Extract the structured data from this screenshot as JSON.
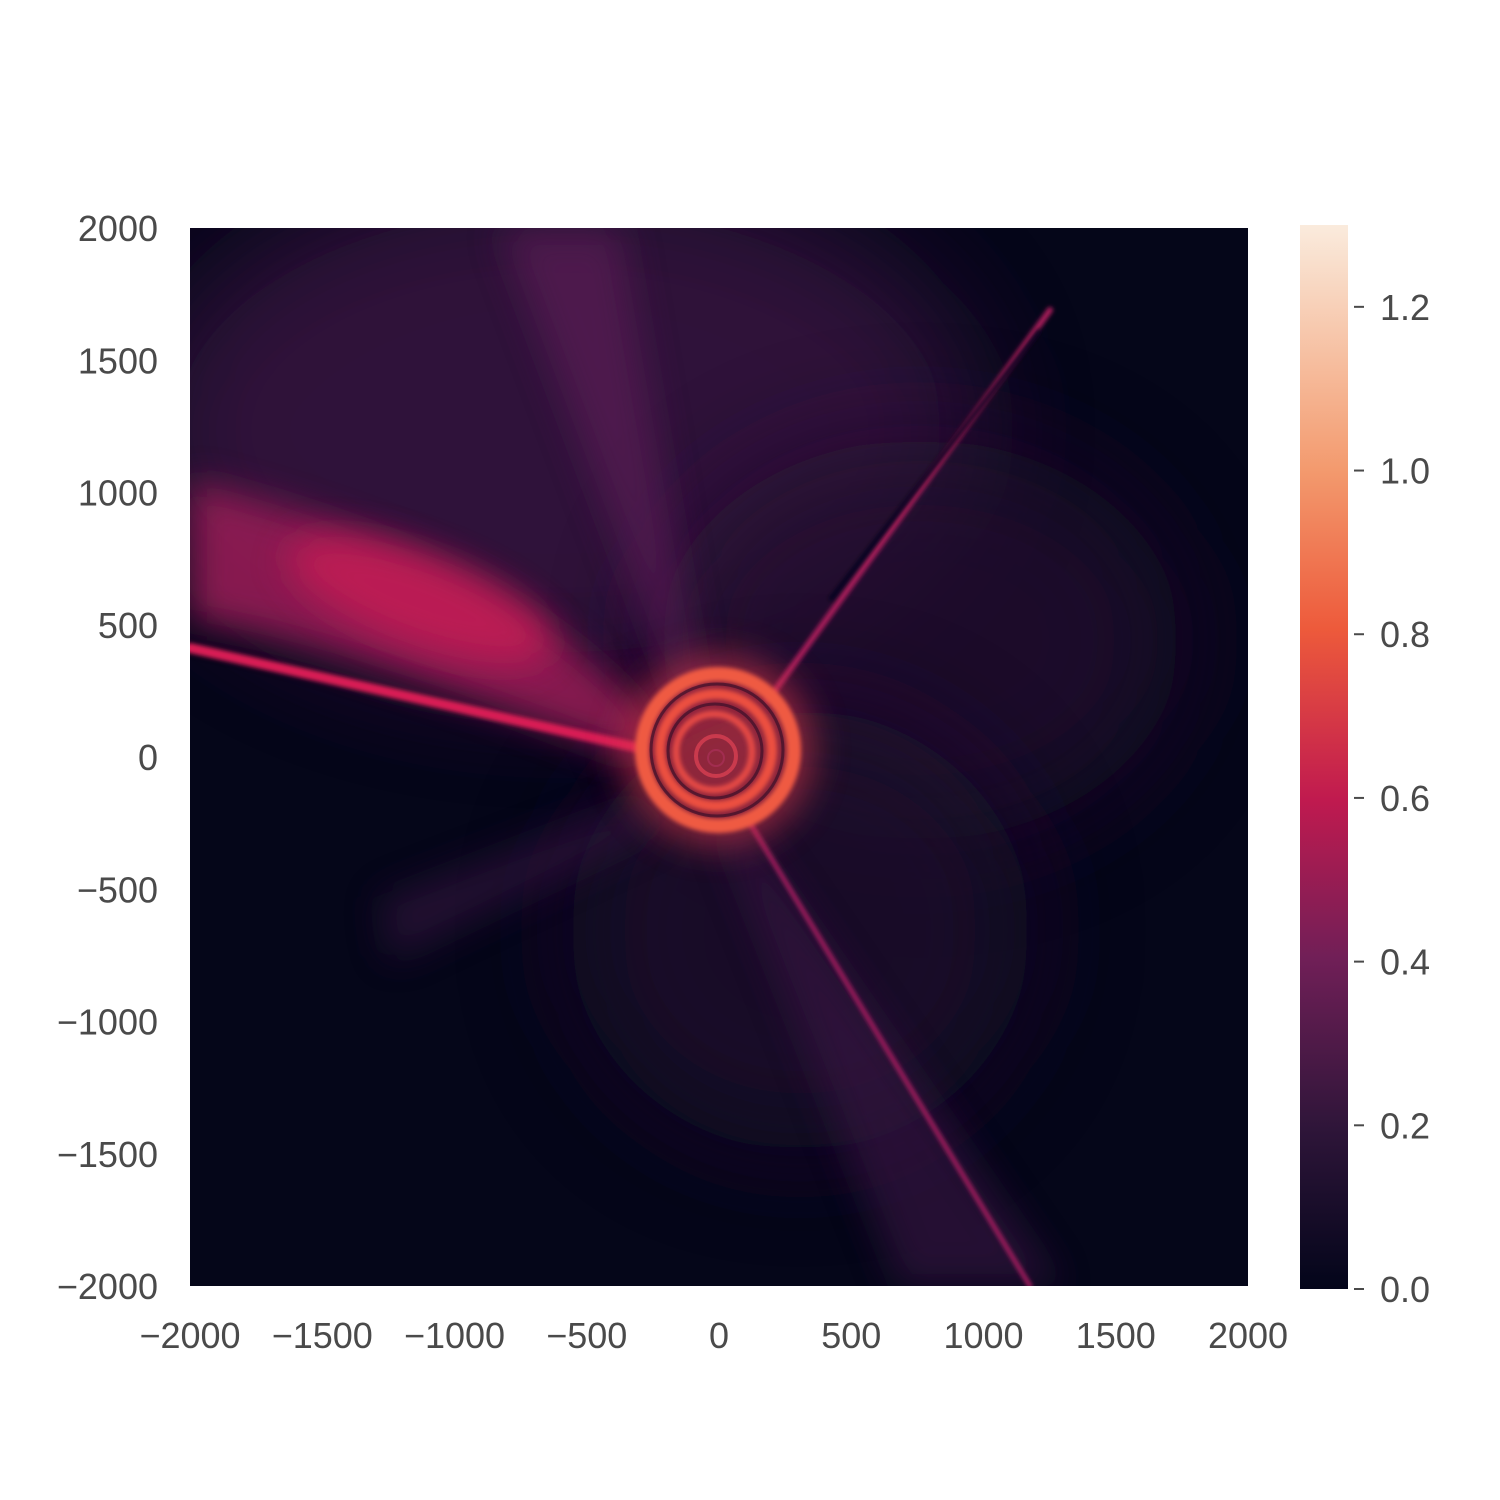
{
  "chart_data": {
    "type": "heatmap",
    "title": "",
    "xlabel": "",
    "ylabel": "",
    "xlim": [
      -2000,
      2000
    ],
    "ylim": [
      -2000,
      2000
    ],
    "x_ticks": [
      -2000,
      -1500,
      -1000,
      -500,
      0,
      500,
      1000,
      1500,
      2000
    ],
    "y_ticks": [
      2000,
      1500,
      1000,
      500,
      0,
      -500,
      -1000,
      -1500,
      -2000
    ],
    "x_tick_labels": [
      "−2000",
      "−1500",
      "−1000",
      "−500",
      "0",
      "500",
      "1000",
      "1500",
      "2000"
    ],
    "y_tick_labels": [
      "2000",
      "1500",
      "1000",
      "500",
      "0",
      "−500",
      "−1000",
      "−1500",
      "−2000"
    ],
    "colorbar": {
      "range": [
        0.0,
        1.3
      ],
      "ticks": [
        0.0,
        0.2,
        0.4,
        0.6,
        0.8,
        1.0,
        1.2
      ],
      "tick_labels": [
        "0.0",
        "0.2",
        "0.4",
        "0.6",
        "0.8",
        "1.0",
        "1.2"
      ],
      "colors": [
        "#03051a",
        "#2e1539",
        "#701f57",
        "#c01a4f",
        "#ed5a3b",
        "#f39a6e",
        "#faebdd"
      ]
    },
    "grid": false,
    "features": {
      "spiral_center": [
        0,
        0
      ],
      "spiral_outer_radius": 320,
      "jets": [
        {
          "from": [
            -300,
            50
          ],
          "to": [
            -2000,
            420
          ],
          "peak_value": 0.65
        },
        {
          "from": [
            180,
            220
          ],
          "to": [
            1200,
            1700
          ],
          "peak_value": 0.55
        },
        {
          "from": [
            130,
            -230
          ],
          "to": [
            1150,
            -2000
          ],
          "peak_value": 0.45
        }
      ],
      "diffuse_lobe": {
        "center": [
          -1050,
          900
        ],
        "peak_value": 0.55
      }
    }
  }
}
